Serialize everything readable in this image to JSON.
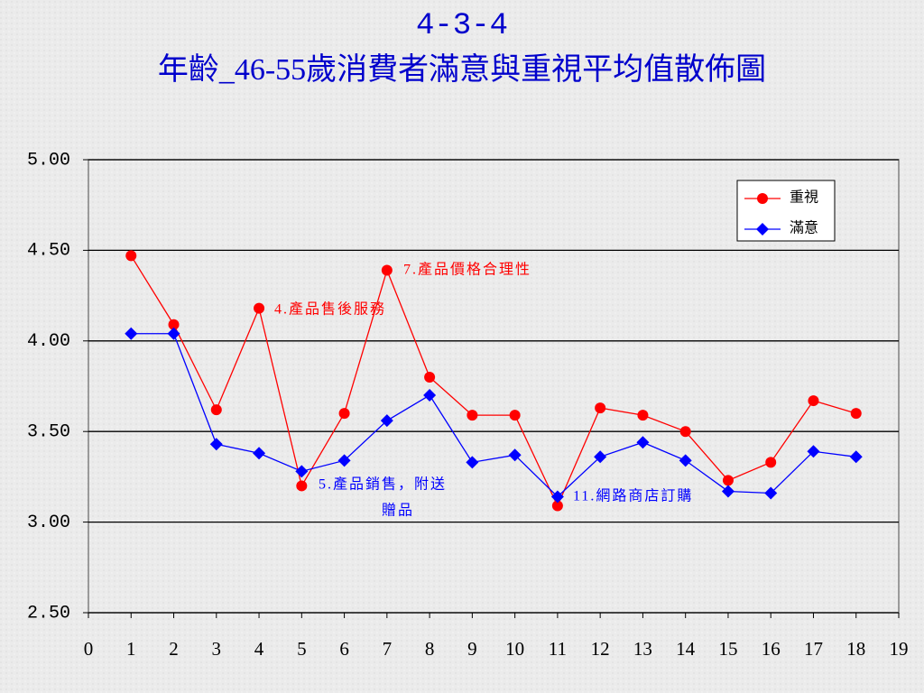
{
  "chart_data": {
    "type": "line",
    "title": "4-3-4",
    "subtitle": "年齡_46-55歲消費者滿意與重視平均值散佈圖",
    "x": [
      1,
      2,
      3,
      4,
      5,
      6,
      7,
      8,
      9,
      10,
      11,
      12,
      13,
      14,
      15,
      16,
      17,
      18
    ],
    "series": [
      {
        "name": "重視",
        "color": "#ff0000",
        "marker": "circle",
        "values": [
          4.47,
          4.09,
          3.62,
          4.18,
          3.2,
          3.6,
          4.39,
          3.8,
          3.59,
          3.59,
          3.09,
          3.63,
          3.59,
          3.5,
          3.23,
          3.33,
          3.67,
          3.6
        ]
      },
      {
        "name": "滿意",
        "color": "#0000ff",
        "marker": "diamond",
        "values": [
          4.04,
          4.04,
          3.43,
          3.38,
          3.28,
          3.34,
          3.56,
          3.7,
          3.33,
          3.37,
          3.14,
          3.36,
          3.44,
          3.34,
          3.17,
          3.16,
          3.39,
          3.36
        ]
      }
    ],
    "xlim": [
      0,
      19
    ],
    "xticks": [
      0,
      1,
      2,
      3,
      4,
      5,
      6,
      7,
      8,
      9,
      10,
      11,
      12,
      13,
      14,
      15,
      16,
      17,
      18,
      19
    ],
    "ylim": [
      2.5,
      5
    ],
    "yticks": [
      {
        "value": 2.5,
        "label": "2.50"
      },
      {
        "value": 3,
        "label": "3.00"
      },
      {
        "value": 3.5,
        "label": "3.50"
      },
      {
        "value": 4,
        "label": "4.00"
      },
      {
        "value": 4.5,
        "label": "4.50"
      },
      {
        "value": 5,
        "label": "5.00"
      }
    ],
    "grid": true,
    "legend": "upper right",
    "annotations": [
      {
        "text": "7.產品價格合理性",
        "color": "#ff0000"
      },
      {
        "text": "4.產品售後服務",
        "color": "#ff0000"
      },
      {
        "text": "5.產品銷售，附送",
        "color": "#0000ff"
      },
      {
        "text": "贈品",
        "color": "#0000ff"
      },
      {
        "text": "11.網路商店訂購",
        "color": "#0000ff"
      }
    ]
  }
}
